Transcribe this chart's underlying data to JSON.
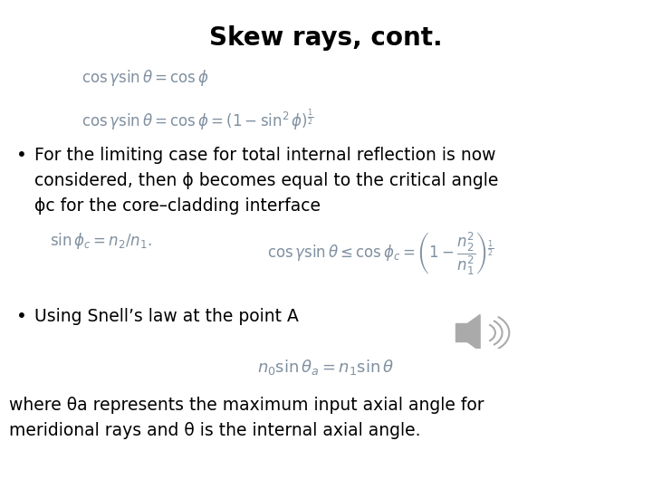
{
  "title": "Skew rays, cont.",
  "title_fontsize": 20,
  "title_fontweight": "bold",
  "bg_color": "#ffffff",
  "eq1": "$\\cos \\gamma \\sin \\theta = \\cos \\phi$",
  "eq2": "$\\cos \\gamma \\sin \\theta = \\cos \\phi = (1 - \\sin^2 \\phi)^{\\frac{1}{2}}$",
  "bullet1_line1": "For the limiting case for total internal reflection is now",
  "bullet1_line2": "considered, then ϕ becomes equal to the critical angle",
  "bullet1_line3": "ϕc for the core–cladding interface",
  "eq3a": "$\\sin \\phi_c = n_2/n_1.$",
  "eq3b": "$\\cos \\gamma \\sin \\theta \\leq \\cos \\phi_c = \\left(1 - \\dfrac{n_2^2}{n_1^2}\\right)^{\\frac{1}{2}}$",
  "bullet2": "Using Snell’s law at the point A",
  "eq4": "$n_0 \\sin \\theta_a = n_1 \\sin \\theta$",
  "footer_line1": "where θa represents the maximum input axial angle for",
  "footer_line2": "meridional rays and θ is the internal axial angle.",
  "text_color": "#000000",
  "eq_color": "#8090a0",
  "body_fontsize": 13.5,
  "eq_fontsize": 12,
  "eq4_fontsize": 13
}
